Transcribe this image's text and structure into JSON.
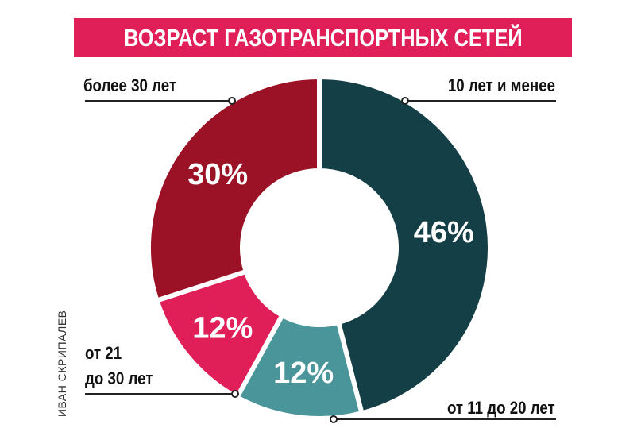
{
  "chart_data": {
    "type": "pie",
    "style": "donut",
    "title": "ВОЗРАСТ ГАЗОТРАНСПОРТНЫХ СЕТЕЙ",
    "slices": [
      {
        "label": "10 лет и менее",
        "value": 46,
        "display": "46%",
        "color": "#143f47"
      },
      {
        "label": "от 11 до 20 лет",
        "value": 12,
        "display": "12%",
        "color": "#4a959a"
      },
      {
        "label": "от 21 до 30 лет",
        "label_lines": [
          "от 21",
          "до 30 лет"
        ],
        "value": 12,
        "display": "12%",
        "color": "#e01f58"
      },
      {
        "label": "более 30 лет",
        "value": 30,
        "display": "30%",
        "color": "#9b1126"
      }
    ],
    "title_color": "#e01f58"
  },
  "credit": "ИВАН СКРИПАЛЕВ"
}
